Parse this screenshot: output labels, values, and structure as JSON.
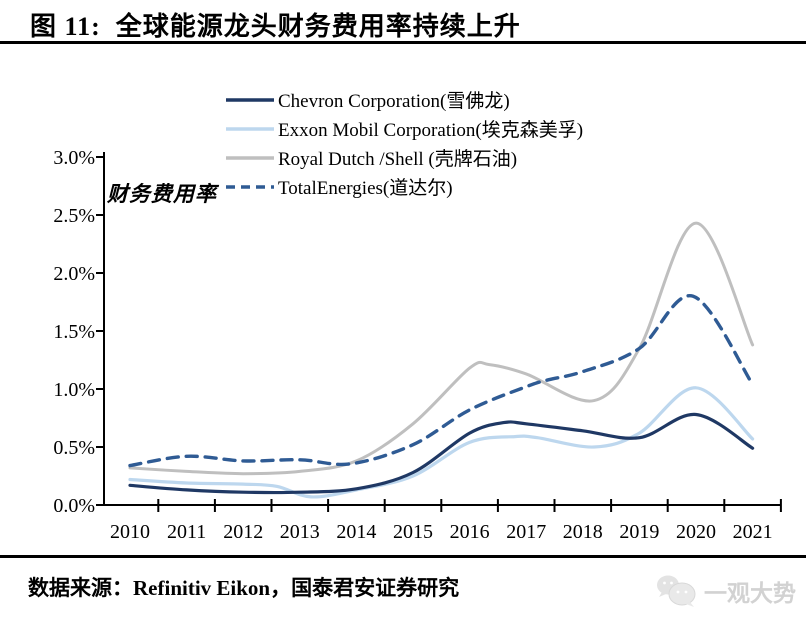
{
  "page": {
    "title": "图 11:  全球能源龙头财务费用率持续上升",
    "source_line": "数据来源：Refinitiv Eikon，国泰君安证券研究",
    "watermark": {
      "icon": "wechat-icon",
      "label": "一观大势"
    }
  },
  "chart_data": {
    "type": "line",
    "title": "全球能源龙头财务费用率持续上升",
    "annotation": "财务费用率",
    "unit": "%",
    "xlim": [
      2009.5,
      2021.5
    ],
    "ylim": [
      0.0,
      3.0
    ],
    "grid": false,
    "legend_position": "top",
    "x_ticks": [
      {
        "v": 2010,
        "label": "2010"
      },
      {
        "v": 2011,
        "label": "2011"
      },
      {
        "v": 2012,
        "label": "2012"
      },
      {
        "v": 2013,
        "label": "2013"
      },
      {
        "v": 2014,
        "label": "2014"
      },
      {
        "v": 2015,
        "label": "2015"
      },
      {
        "v": 2016,
        "label": "2016"
      },
      {
        "v": 2017,
        "label": "2017"
      },
      {
        "v": 2018,
        "label": "2018"
      },
      {
        "v": 2019,
        "label": "2019"
      },
      {
        "v": 2020,
        "label": "2020"
      },
      {
        "v": 2021,
        "label": "2021"
      }
    ],
    "y_ticks": [
      {
        "v": 3.0,
        "label": "3.0%"
      },
      {
        "v": 2.5,
        "label": "2.5%"
      },
      {
        "v": 2.0,
        "label": "2.0%"
      },
      {
        "v": 1.5,
        "label": "1.5%"
      },
      {
        "v": 1.0,
        "label": "1.0%"
      },
      {
        "v": 0.5,
        "label": "0.5%"
      },
      {
        "v": 0.0,
        "label": "0.0%"
      }
    ],
    "series": [
      {
        "name": "Chevron Corporation(雪佛龙)",
        "color": "#1f3864",
        "line_style": "solid",
        "points": [
          [
            2010,
            0.17
          ],
          [
            2011,
            0.13
          ],
          [
            2012,
            0.11
          ],
          [
            2013,
            0.11
          ],
          [
            2014,
            0.14
          ],
          [
            2015,
            0.28
          ],
          [
            2016,
            0.62
          ],
          [
            2016.6,
            0.71
          ],
          [
            2017,
            0.7
          ],
          [
            2018,
            0.64
          ],
          [
            2019,
            0.58
          ],
          [
            2020,
            0.78
          ],
          [
            2021,
            0.49
          ]
        ]
      },
      {
        "name": "Exxon Mobil Corporation(埃克森美孚)",
        "color": "#bdd7ee",
        "line_style": "solid",
        "points": [
          [
            2010,
            0.22
          ],
          [
            2011,
            0.19
          ],
          [
            2012,
            0.18
          ],
          [
            2012.6,
            0.16
          ],
          [
            2013.2,
            0.07
          ],
          [
            2014,
            0.13
          ],
          [
            2015,
            0.25
          ],
          [
            2016,
            0.54
          ],
          [
            2016.8,
            0.59
          ],
          [
            2017.2,
            0.58
          ],
          [
            2018.2,
            0.5
          ],
          [
            2019,
            0.62
          ],
          [
            2020,
            1.01
          ],
          [
            2021,
            0.57
          ]
        ]
      },
      {
        "name": "Royal Dutch /Shell (壳牌石油)",
        "color": "#bfbfbf",
        "line_style": "solid",
        "points": [
          [
            2010,
            0.32
          ],
          [
            2011,
            0.29
          ],
          [
            2012,
            0.27
          ],
          [
            2013,
            0.29
          ],
          [
            2014,
            0.38
          ],
          [
            2015,
            0.7
          ],
          [
            2016,
            1.18
          ],
          [
            2016.35,
            1.21
          ],
          [
            2017,
            1.13
          ],
          [
            2018.2,
            0.9
          ],
          [
            2019,
            1.35
          ],
          [
            2020,
            2.43
          ],
          [
            2021,
            1.38
          ]
        ]
      },
      {
        "name": "TotalEnergies(道达尔)",
        "color": "#2f5b94",
        "line_style": "dashed",
        "points": [
          [
            2010,
            0.34
          ],
          [
            2011,
            0.42
          ],
          [
            2012,
            0.38
          ],
          [
            2013,
            0.39
          ],
          [
            2013.9,
            0.355
          ],
          [
            2015,
            0.52
          ],
          [
            2016,
            0.82
          ],
          [
            2017,
            1.02
          ],
          [
            2017.4,
            1.08
          ],
          [
            2018,
            1.15
          ],
          [
            2019,
            1.35
          ],
          [
            2019.95,
            1.8
          ],
          [
            2021,
            1.04
          ]
        ]
      }
    ]
  }
}
